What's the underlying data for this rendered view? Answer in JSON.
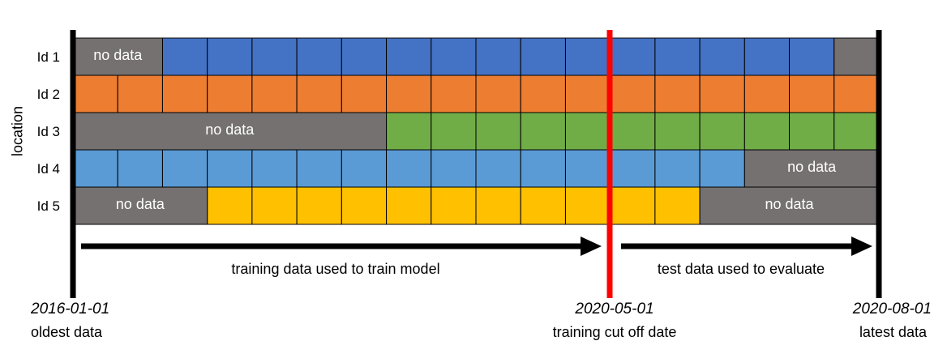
{
  "axis": {
    "y_label": "location"
  },
  "rows": [
    {
      "id": "Id 1",
      "color": "#4472C4",
      "no_data": [
        {
          "from": 0,
          "to": 2,
          "text": "no data"
        },
        {
          "from": 17,
          "to": 18,
          "text": ""
        }
      ]
    },
    {
      "id": "Id 2",
      "color": "#ED7D31",
      "no_data": []
    },
    {
      "id": "Id 3",
      "color": "#70AD47",
      "no_data": [
        {
          "from": 0,
          "to": 7,
          "text": "no data"
        }
      ]
    },
    {
      "id": "Id 4",
      "color": "#5B9BD5",
      "no_data": [
        {
          "from": 15,
          "to": 18,
          "text": "no data"
        }
      ]
    },
    {
      "id": "Id 5",
      "color": "#FFC000",
      "no_data": [
        {
          "from": 0,
          "to": 3,
          "text": "no data"
        },
        {
          "from": 14,
          "to": 18,
          "text": "no data"
        }
      ]
    }
  ],
  "no_data_color": "#767171",
  "cutoff_color": "#FF0000",
  "arrows": {
    "train_label": "training data used to train model",
    "test_label": "test data used to evaluate"
  },
  "markers": [
    {
      "date": "2016-01-01",
      "caption": "oldest data"
    },
    {
      "date": "2020-05-01",
      "caption": "training cut off date"
    },
    {
      "date": "2020-08-01",
      "caption": "latest data"
    }
  ]
}
